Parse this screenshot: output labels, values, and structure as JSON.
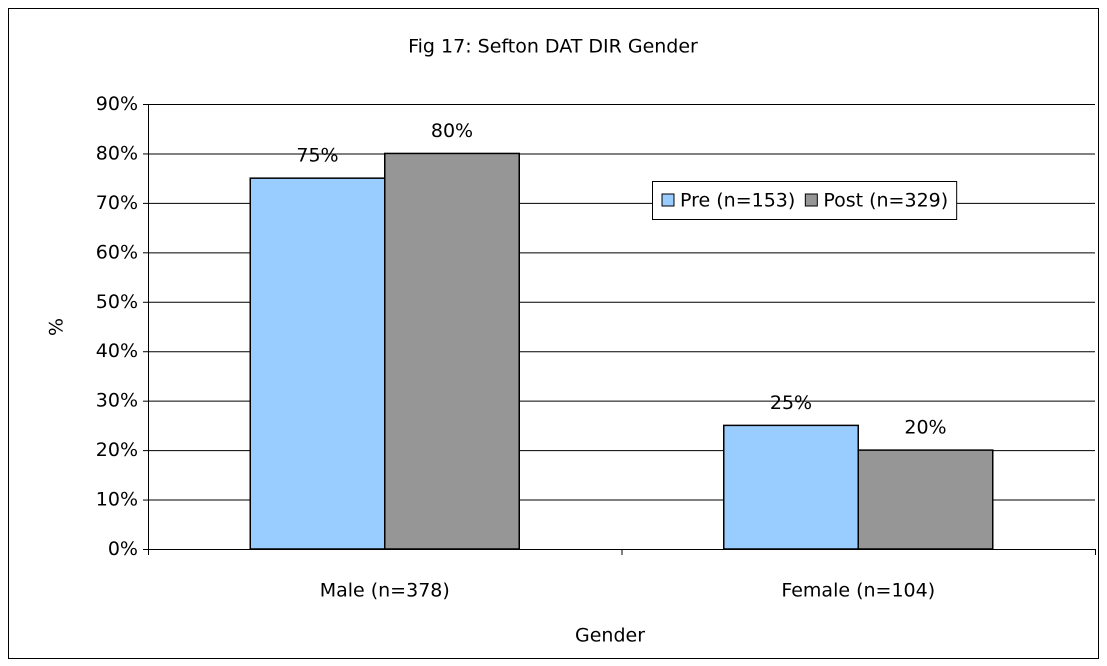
{
  "chart_data": {
    "type": "bar",
    "title": "Fig 17: Sefton DAT DIR Gender",
    "x_label": "Gender",
    "y_label": "%",
    "categories": [
      "Male (n=378)",
      "Female (n=104)"
    ],
    "series": [
      {
        "name": "Pre (n=153)",
        "color": "#99ccff",
        "values": [
          75,
          25
        ],
        "value_labels": [
          "75%",
          "25%"
        ]
      },
      {
        "name": "Post (n=329)",
        "color": "#969696",
        "values": [
          80,
          20
        ],
        "value_labels": [
          "80%",
          "20%"
        ]
      }
    ],
    "ylim": [
      0,
      90
    ],
    "yticks": [
      {
        "value": 0,
        "label": "0%"
      },
      {
        "value": 10,
        "label": "10%"
      },
      {
        "value": 20,
        "label": "20%"
      },
      {
        "value": 30,
        "label": "30%"
      },
      {
        "value": 40,
        "label": "40%"
      },
      {
        "value": 50,
        "label": "50%"
      },
      {
        "value": 60,
        "label": "60%"
      },
      {
        "value": 70,
        "label": "70%"
      },
      {
        "value": 80,
        "label": "80%"
      },
      {
        "value": 90,
        "label": "90%"
      }
    ],
    "grid": true,
    "legend": "upper right"
  }
}
